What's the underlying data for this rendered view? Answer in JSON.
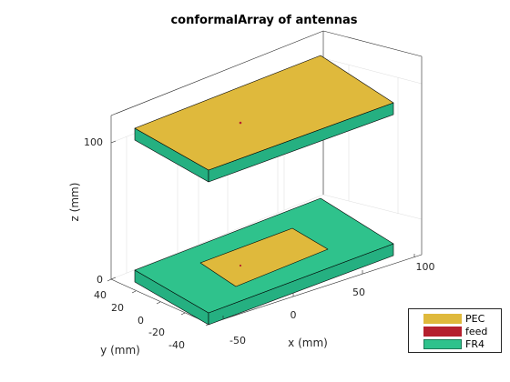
{
  "title": "conformalArray of antennas",
  "axes": {
    "xlabel": "x (mm)",
    "ylabel": "y (mm)",
    "zlabel": "z (mm)",
    "x_ticks": [
      "-50",
      "0",
      "50",
      "100"
    ],
    "y_ticks": [
      "40",
      "20",
      "0",
      "-20",
      "-40"
    ],
    "z_ticks": [
      "0",
      "100"
    ]
  },
  "legend": {
    "placement": "bottom-right",
    "items": [
      {
        "label": "PEC",
        "color": "#dfb93c"
      },
      {
        "label": "feed",
        "color": "#b5202e"
      },
      {
        "label": "FR4",
        "color": "#2fc28c"
      }
    ]
  },
  "colors": {
    "pec": "#dfb93c",
    "fr4_top": "#2fc28c",
    "fr4_side": "#25b081",
    "feed": "#b5202e"
  }
}
